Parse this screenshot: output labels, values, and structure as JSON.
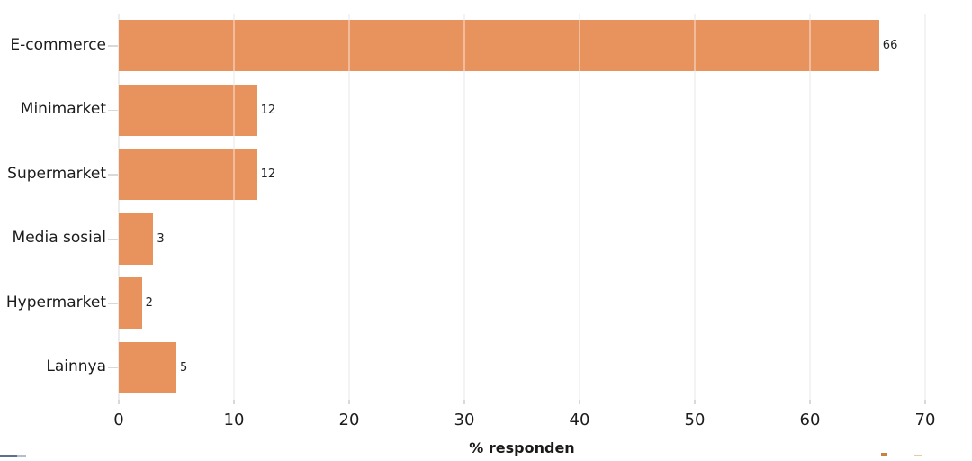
{
  "chart_data": {
    "type": "bar",
    "orientation": "horizontal",
    "title": "",
    "categories": [
      "E-commerce",
      "Minimarket",
      "Supermarket",
      "Media sosial",
      "Hypermarket",
      "Lainnya"
    ],
    "values": [
      66,
      12,
      12,
      3,
      2,
      5
    ],
    "value_labels": [
      "66",
      "12",
      "12",
      "3",
      "2",
      "5"
    ],
    "xlabel": "% responden",
    "ylabel": "",
    "xlim": [
      0,
      70
    ],
    "xticks": [
      0,
      10,
      20,
      30,
      40,
      50,
      60,
      70
    ],
    "xtick_labels": [
      "0",
      "10",
      "20",
      "30",
      "40",
      "50",
      "60",
      "70"
    ],
    "grid": "vertical-gridlines-on",
    "legend": "none",
    "colors": {
      "bar": "#e8935e",
      "gridline": "#ececec",
      "tick": "#d9d9d9",
      "text": "#1c1c1c",
      "background": "#ffffff"
    }
  },
  "artifacts": {
    "bottom_left_fragment_colors": [
      "#5e7090",
      "#b3bfd1"
    ],
    "bottom_right_fragment_colors": [
      "#c98140",
      "#ecc9a4"
    ]
  }
}
